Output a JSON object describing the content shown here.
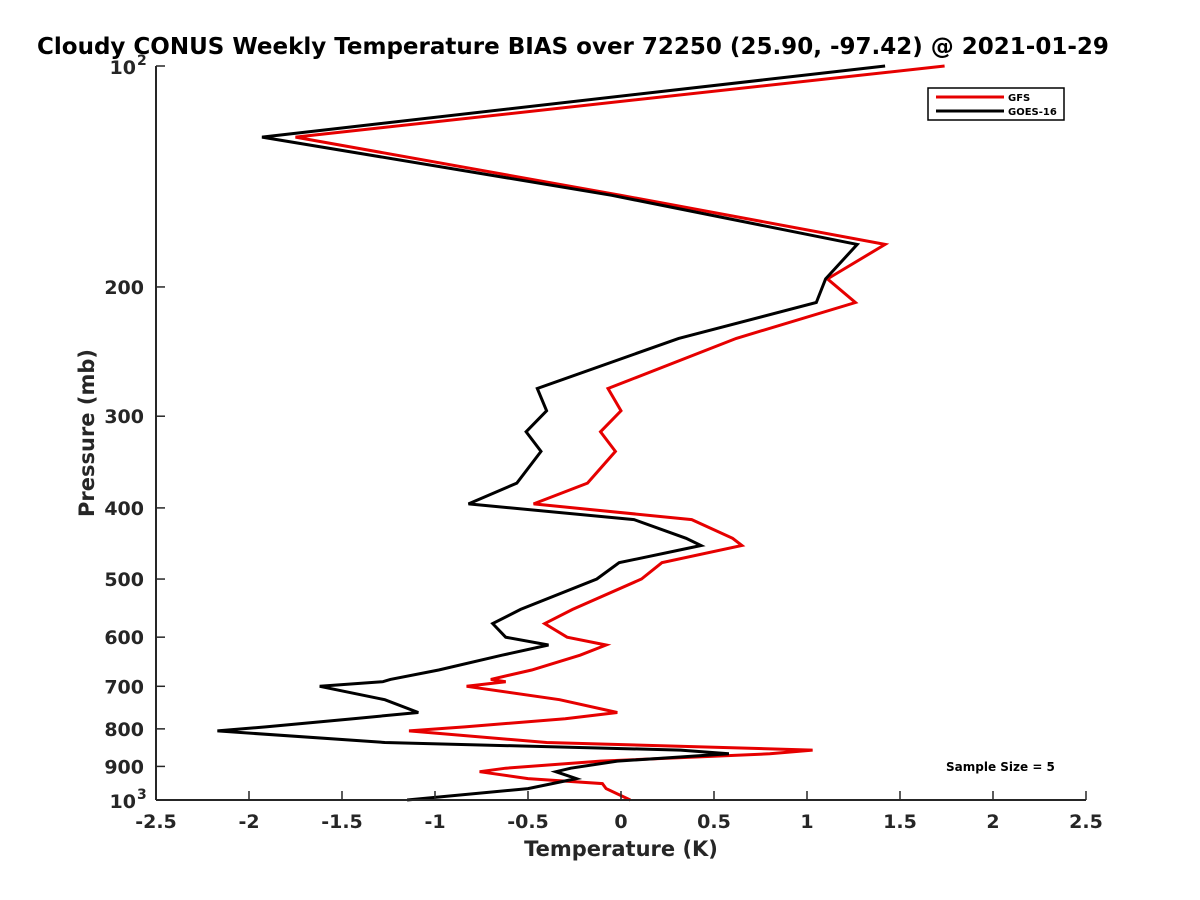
{
  "chart_data": {
    "type": "line",
    "title": "Cloudy CONUS Weekly Temperature BIAS over 72250 (25.90, -97.42) @ 2021-01-29",
    "xlabel": "Temperature (K)",
    "ylabel": "Pressure (mb)",
    "xlim": [
      -2.5,
      2.5
    ],
    "ylim": [
      100,
      1000
    ],
    "y_scale": "log",
    "y_reversed": true,
    "x_ticks": [
      {
        "value": -2.5,
        "label": "-2.5"
      },
      {
        "value": -2,
        "label": "-2"
      },
      {
        "value": -1.5,
        "label": "-1.5"
      },
      {
        "value": -1,
        "label": "-1"
      },
      {
        "value": -0.5,
        "label": "-0.5"
      },
      {
        "value": 0,
        "label": "0"
      },
      {
        "value": 0.5,
        "label": "0.5"
      },
      {
        "value": 1,
        "label": "1"
      },
      {
        "value": 1.5,
        "label": "1.5"
      },
      {
        "value": 2,
        "label": "2"
      },
      {
        "value": 2.5,
        "label": "2.5"
      }
    ],
    "y_ticks": [
      {
        "value": 100,
        "base": "10",
        "exp": "2"
      },
      {
        "value": 200,
        "base": "200",
        "exp": ""
      },
      {
        "value": 300,
        "base": "300",
        "exp": ""
      },
      {
        "value": 400,
        "base": "400",
        "exp": ""
      },
      {
        "value": 500,
        "base": "500",
        "exp": ""
      },
      {
        "value": 600,
        "base": "600",
        "exp": ""
      },
      {
        "value": 700,
        "base": "700",
        "exp": ""
      },
      {
        "value": 800,
        "base": "800",
        "exp": ""
      },
      {
        "value": 900,
        "base": "900",
        "exp": ""
      },
      {
        "value": 1000,
        "base": "10",
        "exp": "3"
      }
    ],
    "grid": false,
    "legend_position": "top-right",
    "series": [
      {
        "name": "GFS",
        "color": "#e60000",
        "points": [
          [
            1.74,
            100
          ],
          [
            -1.75,
            125
          ],
          [
            0.0,
            150
          ],
          [
            1.42,
            175
          ],
          [
            1.11,
            195
          ],
          [
            1.26,
            210
          ],
          [
            0.62,
            235
          ],
          [
            -0.07,
            275
          ],
          [
            0.0,
            295
          ],
          [
            -0.11,
            315
          ],
          [
            -0.03,
            335
          ],
          [
            -0.18,
            370
          ],
          [
            -0.47,
            395
          ],
          [
            0.38,
            415
          ],
          [
            0.6,
            440
          ],
          [
            0.65,
            450
          ],
          [
            0.22,
            475
          ],
          [
            0.11,
            500
          ],
          [
            -0.26,
            550
          ],
          [
            -0.41,
            575
          ],
          [
            -0.29,
            600
          ],
          [
            -0.08,
            615
          ],
          [
            -0.22,
            635
          ],
          [
            -0.48,
            665
          ],
          [
            -0.7,
            685
          ],
          [
            -0.62,
            690
          ],
          [
            -0.83,
            700
          ],
          [
            -0.33,
            730
          ],
          [
            -0.02,
            760
          ],
          [
            -0.3,
            775
          ],
          [
            -0.84,
            795
          ],
          [
            -1.14,
            805
          ],
          [
            -0.4,
            835
          ],
          [
            1.03,
            855
          ],
          [
            0.8,
            865
          ],
          [
            -0.11,
            885
          ],
          [
            -0.62,
            905
          ],
          [
            -0.76,
            915
          ],
          [
            -0.5,
            935
          ],
          [
            -0.1,
            950
          ],
          [
            -0.08,
            965
          ],
          [
            0.05,
            1000
          ]
        ]
      },
      {
        "name": "GOES-16",
        "color": "#000000",
        "points": [
          [
            1.42,
            100
          ],
          [
            -1.93,
            125
          ],
          [
            -0.05,
            150
          ],
          [
            1.27,
            175
          ],
          [
            1.1,
            195
          ],
          [
            1.05,
            210
          ],
          [
            0.31,
            235
          ],
          [
            -0.45,
            275
          ],
          [
            -0.4,
            295
          ],
          [
            -0.51,
            315
          ],
          [
            -0.43,
            335
          ],
          [
            -0.56,
            370
          ],
          [
            -0.82,
            395
          ],
          [
            0.07,
            415
          ],
          [
            0.35,
            440
          ],
          [
            0.43,
            450
          ],
          [
            -0.01,
            475
          ],
          [
            -0.13,
            500
          ],
          [
            -0.54,
            550
          ],
          [
            -0.69,
            575
          ],
          [
            -0.62,
            600
          ],
          [
            -0.39,
            615
          ],
          [
            -0.64,
            635
          ],
          [
            -0.98,
            665
          ],
          [
            -1.24,
            685
          ],
          [
            -1.28,
            690
          ],
          [
            -1.62,
            700
          ],
          [
            -1.27,
            730
          ],
          [
            -1.09,
            760
          ],
          [
            -1.44,
            775
          ],
          [
            -1.91,
            795
          ],
          [
            -2.17,
            805
          ],
          [
            -1.27,
            835
          ],
          [
            0.32,
            855
          ],
          [
            0.58,
            865
          ],
          [
            -0.02,
            885
          ],
          [
            -0.27,
            905
          ],
          [
            -0.35,
            915
          ],
          [
            -0.24,
            935
          ],
          [
            -0.37,
            950
          ],
          [
            -0.5,
            965
          ],
          [
            -1.15,
            1000
          ]
        ]
      }
    ],
    "annotations": [
      {
        "text": "Sample Size = 5",
        "position": "bottom-right"
      }
    ]
  }
}
